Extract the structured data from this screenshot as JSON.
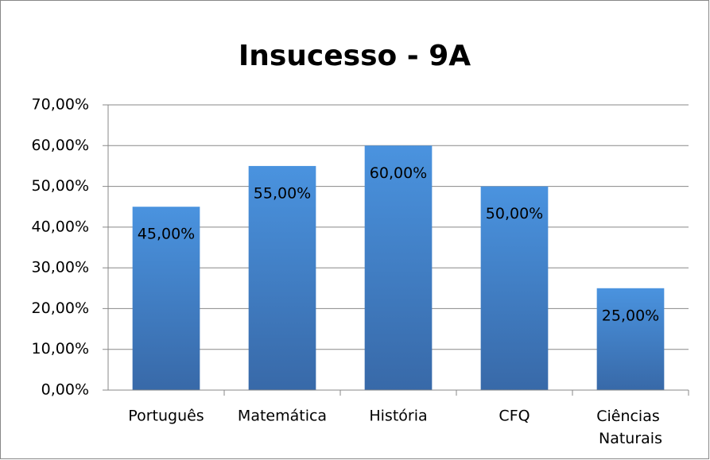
{
  "chart_data": {
    "type": "bar",
    "title": "Insucesso - 9A",
    "categories": [
      "Português",
      "Matemática",
      "História",
      "CFQ",
      "Ciências Naturais"
    ],
    "values": [
      45,
      55,
      60,
      50,
      25
    ],
    "value_labels": [
      "45,00%",
      "55,00%",
      "60,00%",
      "50,00%",
      "25,00%"
    ],
    "color": "#4a8fd8",
    "ylim": [
      0,
      70
    ],
    "yticks": [
      {
        "value": 0,
        "label": "0,00%"
      },
      {
        "value": 10,
        "label": "10,00%"
      },
      {
        "value": 20,
        "label": "20,00%"
      },
      {
        "value": 30,
        "label": "30,00%"
      },
      {
        "value": 40,
        "label": "40,00%"
      },
      {
        "value": 50,
        "label": "50,00%"
      },
      {
        "value": 60,
        "label": "60,00%"
      },
      {
        "value": 70,
        "label": "70,00%"
      }
    ],
    "grid": true
  }
}
